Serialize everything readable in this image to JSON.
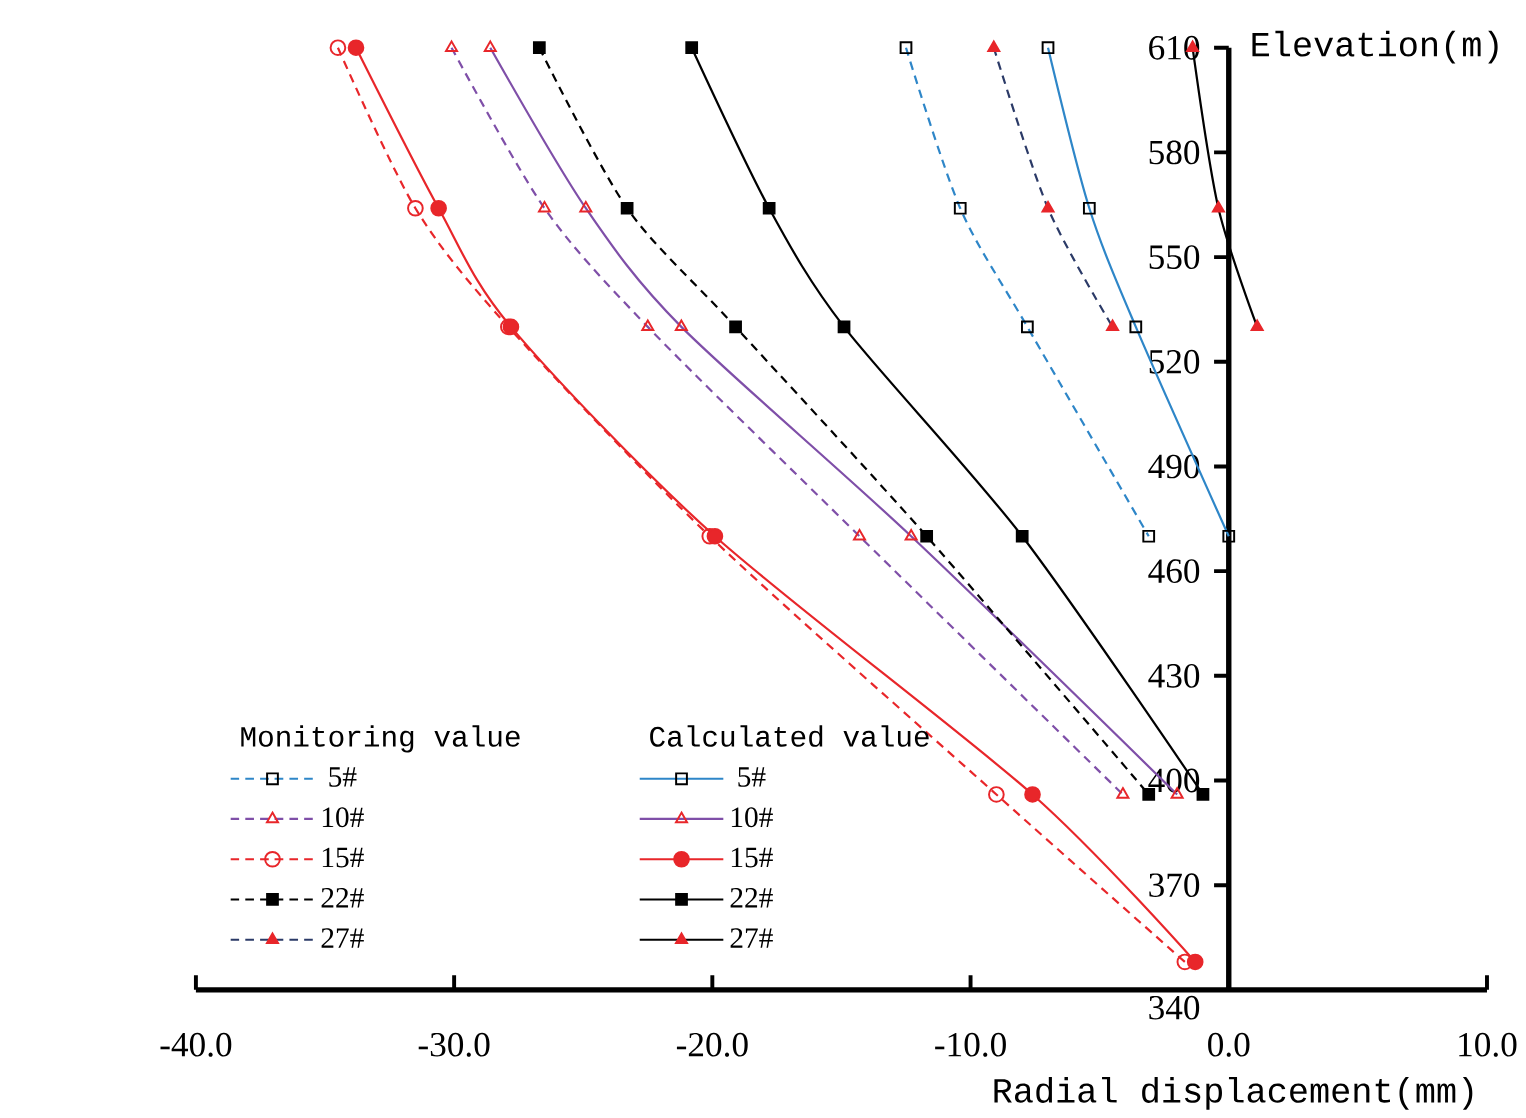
{
  "chart_data": {
    "type": "line",
    "xlabel": "Radial displacement(mm)",
    "ylabel": "Elevation(m)",
    "xlim": [
      -40,
      10
    ],
    "ylim": [
      340,
      610
    ],
    "xticks": [
      {
        "value": -40,
        "label": "-40.0"
      },
      {
        "value": -30,
        "label": "-30.0"
      },
      {
        "value": -20,
        "label": "-20.0"
      },
      {
        "value": -10,
        "label": "-10.0"
      },
      {
        "value": 0,
        "label": "0.0"
      },
      {
        "value": 10,
        "label": "10.0"
      }
    ],
    "yticks": [
      340,
      370,
      400,
      430,
      460,
      490,
      520,
      550,
      580,
      610
    ],
    "legend": "bottom left",
    "annotations": [
      "Monitoring value",
      "Calculated value"
    ],
    "series": [
      {
        "name": "5#",
        "color": "#2e86c8",
        "line_style": "dashed",
        "marker": "square-open",
        "colors": [
          "#000000",
          "#000000",
          "#000000",
          "#000000"
        ],
        "x": [
          -12.5,
          -10.4,
          -7.8,
          -3.1
        ],
        "values": [
          610,
          564,
          530,
          470
        ]
      },
      {
        "name": "10#",
        "color": "#7f4fa8",
        "line_style": "dashed",
        "marker": "triangle-open",
        "colors": [
          "#e8262a",
          "#e8262a",
          "#e8262a",
          "#e8262a",
          "#e8262a"
        ],
        "x": [
          -30.1,
          -26.5,
          -22.5,
          -14.3,
          -4.1
        ],
        "values": [
          610,
          564,
          530,
          470,
          396
        ]
      },
      {
        "name": "15#",
        "color": "#e8262a",
        "line_style": "dashed",
        "marker": "circle-open",
        "colors": [
          "#e8262a",
          "#e8262a",
          "#e8262a",
          "#e8262a",
          "#e8262a",
          "#e8262a"
        ],
        "x": [
          -34.5,
          -31.5,
          -27.9,
          -20.1,
          -9.0,
          -1.7
        ],
        "values": [
          610,
          564,
          530,
          470,
          396,
          348
        ]
      },
      {
        "name": "22#",
        "color": "#000000",
        "line_style": "dashed",
        "marker": "square",
        "colors": [
          "#000000",
          "#000000",
          "#000000",
          "#000000",
          "#000000"
        ],
        "x": [
          -26.7,
          -23.3,
          -19.1,
          -11.7,
          -3.1
        ],
        "values": [
          610,
          564,
          530,
          470,
          396
        ]
      },
      {
        "name": "27#",
        "color": "#2b3a67",
        "line_style": "dashed",
        "marker": "triangle",
        "colors": [
          "#e8262a",
          "#e8262a",
          "#e8262a"
        ],
        "x": [
          -9.1,
          -7.0,
          -4.5
        ],
        "values": [
          610,
          564,
          530
        ]
      },
      {
        "name": "5#",
        "color": "#2e86c8",
        "line_style": "solid",
        "marker": "square-open",
        "colors": [
          "#000000",
          "#000000",
          "#000000",
          "#000000"
        ],
        "x": [
          -7.0,
          -5.4,
          -3.6,
          0.0
        ],
        "values": [
          610,
          564,
          530,
          470
        ]
      },
      {
        "name": "10#",
        "color": "#7f4fa8",
        "line_style": "solid",
        "marker": "triangle-open",
        "colors": [
          "#e8262a",
          "#e8262a",
          "#e8262a",
          "#e8262a",
          "#e8262a"
        ],
        "x": [
          -28.6,
          -24.9,
          -21.2,
          -12.3,
          -2.0
        ],
        "values": [
          610,
          564,
          530,
          470,
          396
        ]
      },
      {
        "name": "15#",
        "color": "#e8262a",
        "line_style": "solid",
        "marker": "circle",
        "colors": [
          "#e8262a",
          "#e8262a",
          "#e8262a",
          "#e8262a",
          "#e8262a",
          "#e8262a"
        ],
        "x": [
          -33.8,
          -30.6,
          -27.8,
          -19.9,
          -7.6,
          -1.3
        ],
        "values": [
          610,
          564,
          530,
          470,
          396,
          348
        ]
      },
      {
        "name": "22#",
        "color": "#000000",
        "line_style": "solid",
        "marker": "square",
        "colors": [
          "#000000",
          "#000000",
          "#000000",
          "#000000",
          "#000000"
        ],
        "x": [
          -20.8,
          -17.8,
          -14.9,
          -8.0,
          -1.0
        ],
        "values": [
          610,
          564,
          530,
          470,
          396
        ]
      },
      {
        "name": "27#",
        "color": "#000000",
        "line_style": "solid",
        "marker": "triangle",
        "colors": [
          "#e8262a",
          "#e8262a",
          "#e8262a"
        ],
        "x": [
          -1.4,
          -0.4,
          1.1
        ],
        "values": [
          610,
          564,
          530
        ]
      }
    ]
  }
}
